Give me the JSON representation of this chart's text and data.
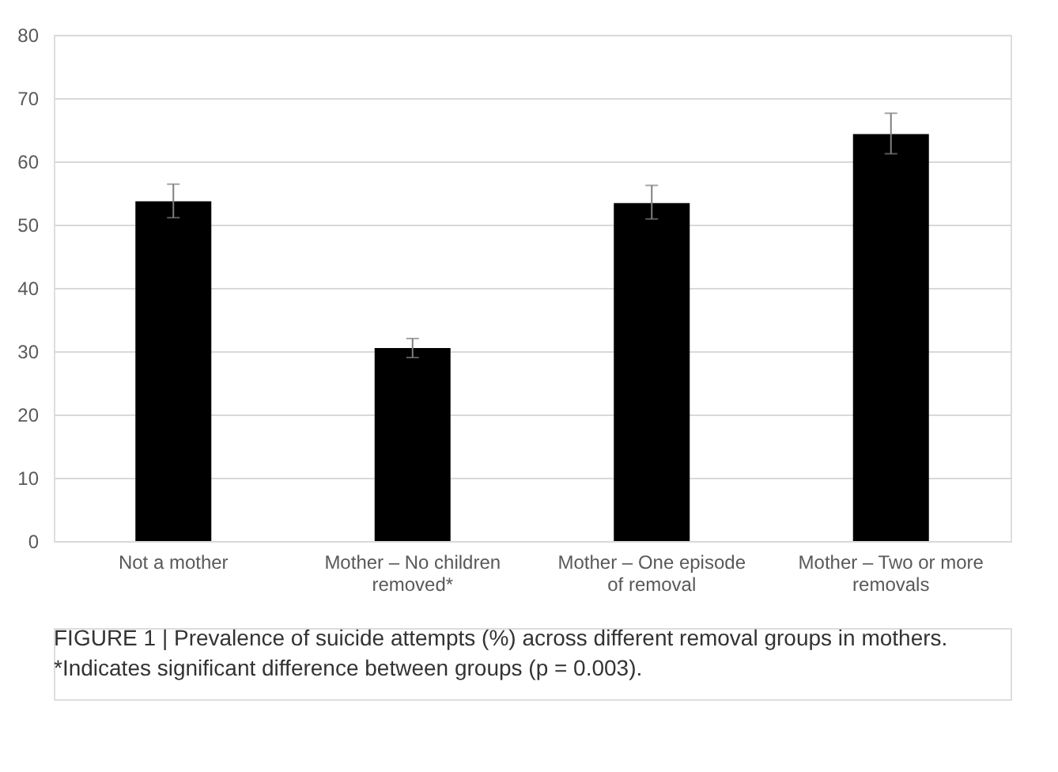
{
  "chart_data": {
    "type": "bar",
    "categories": [
      "Not a mother",
      "Mother – No children removed*",
      "Mother – One episode of removal",
      "Mother – Two or more removals"
    ],
    "values": [
      53.7,
      30.5,
      53.4,
      64.3
    ],
    "errors": [
      [
        51.1,
        56.4
      ],
      [
        29.0,
        32.0
      ],
      [
        50.9,
        56.2
      ],
      [
        61.2,
        67.6
      ]
    ],
    "color": "#000000",
    "ylim": [
      0,
      80
    ],
    "yticks": [
      0,
      10,
      20,
      30,
      40,
      50,
      60,
      70,
      80
    ],
    "grid": "y",
    "annotations": [
      "FIGURE 1 | Prevalence of suicide attempts (%) across different removal groups in mothers. *Indicates significant difference between groups (p = 0.003)."
    ]
  }
}
